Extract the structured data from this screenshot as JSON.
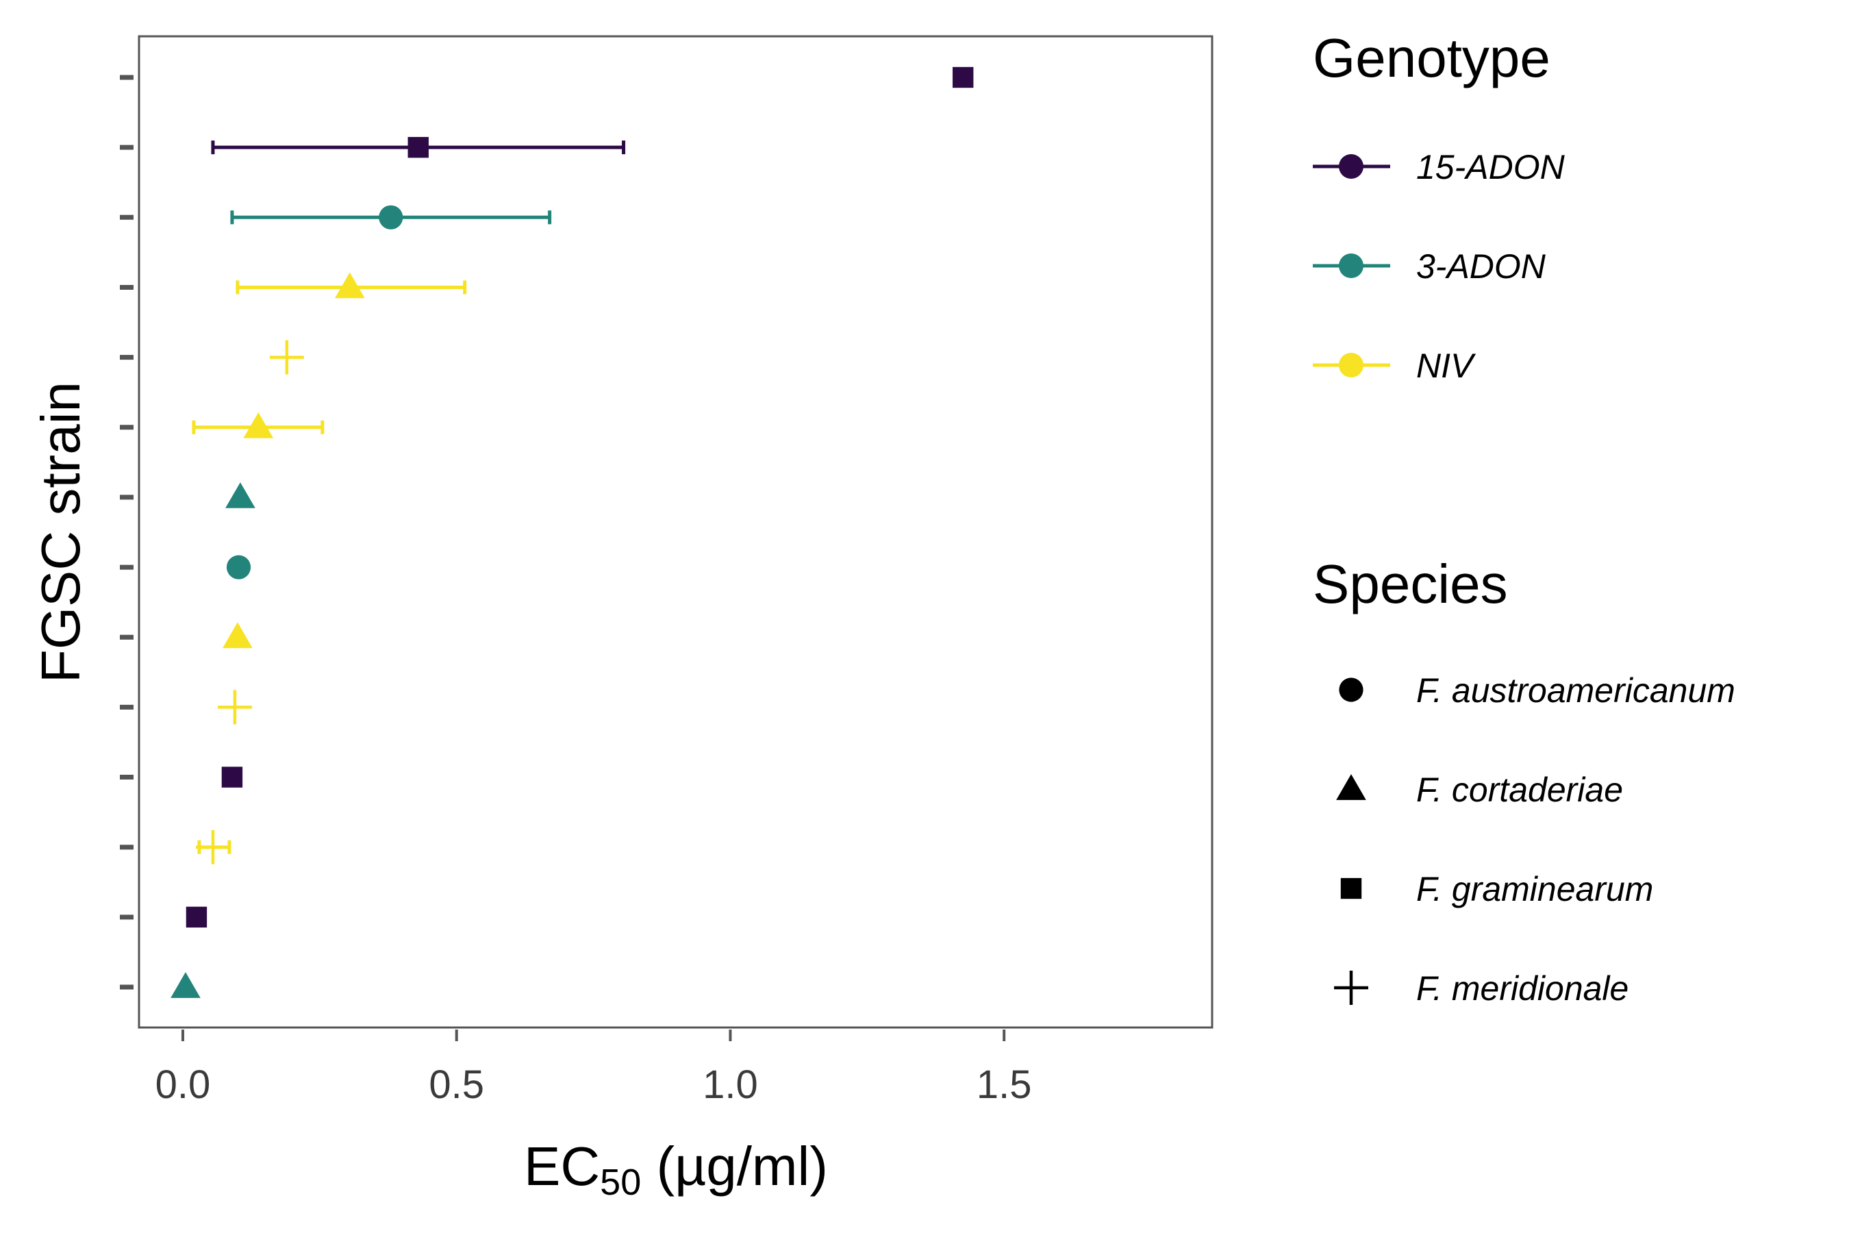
{
  "chart_data": {
    "type": "scatter",
    "xlabel_main": "EC",
    "xlabel_sub": "50",
    "xlabel_unit": " (µg/ml)",
    "ylabel": "FGSC strain",
    "xlim": [
      -0.08,
      1.88
    ],
    "x_ticks": [
      0.0,
      0.5,
      1.0,
      1.5
    ],
    "x_tick_labels": [
      "0.0",
      "0.5",
      "1.0",
      "1.5"
    ],
    "y_tick_count": 14,
    "y_tick_labels_visible": false,
    "grid": false,
    "legend_placement": "right",
    "genotype_colors": {
      "15-ADON": "#2d0a45",
      "3-ADON": "#22847a",
      "NIV": "#f7e223"
    },
    "points": [
      {
        "row": 1,
        "x": 0.005,
        "err": null,
        "genotype": "3-ADON",
        "species": "F. cortaderiae"
      },
      {
        "row": 2,
        "x": 0.025,
        "err": null,
        "genotype": "15-ADON",
        "species": "F. graminearum"
      },
      {
        "row": 3,
        "x": 0.055,
        "err": [
          0.03,
          0.085
        ],
        "genotype": "NIV",
        "species": "F. meridionale"
      },
      {
        "row": 4,
        "x": 0.09,
        "err": null,
        "genotype": "15-ADON",
        "species": "F. graminearum"
      },
      {
        "row": 5,
        "x": 0.095,
        "err": null,
        "genotype": "NIV",
        "species": "F. meridionale"
      },
      {
        "row": 6,
        "x": 0.1,
        "err": null,
        "genotype": "NIV",
        "species": "F. cortaderiae"
      },
      {
        "row": 7,
        "x": 0.102,
        "err": null,
        "genotype": "3-ADON",
        "species": "F. austroamericanum"
      },
      {
        "row": 8,
        "x": 0.105,
        "err": null,
        "genotype": "3-ADON",
        "species": "F. cortaderiae"
      },
      {
        "row": 9,
        "x": 0.138,
        "err": [
          0.02,
          0.255
        ],
        "genotype": "NIV",
        "species": "F. cortaderiae"
      },
      {
        "row": 10,
        "x": 0.19,
        "err": null,
        "genotype": "NIV",
        "species": "F. meridionale"
      },
      {
        "row": 11,
        "x": 0.305,
        "err": [
          0.1,
          0.515
        ],
        "genotype": "NIV",
        "species": "F. cortaderiae"
      },
      {
        "row": 12,
        "x": 0.38,
        "err": [
          0.09,
          0.67
        ],
        "genotype": "3-ADON",
        "species": "F. austroamericanum"
      },
      {
        "row": 13,
        "x": 0.43,
        "err": [
          0.055,
          0.805
        ],
        "genotype": "15-ADON",
        "species": "F. graminearum"
      },
      {
        "row": 14,
        "x": 1.425,
        "err": null,
        "genotype": "15-ADON",
        "species": "F. graminearum"
      }
    ],
    "legend": {
      "genotype_title": "Genotype",
      "genotype_items": [
        {
          "label": "15-ADON",
          "color": "#2d0a45"
        },
        {
          "label": "3-ADON",
          "color": "#22847a"
        },
        {
          "label": "NIV",
          "color": "#f7e223"
        }
      ],
      "species_title": "Species",
      "species_items": [
        {
          "label": "F. austroamericanum",
          "shape": "circle"
        },
        {
          "label": "F. cortaderiae",
          "shape": "triangle"
        },
        {
          "label": "F. graminearum",
          "shape": "square"
        },
        {
          "label": "F. meridionale",
          "shape": "plus"
        }
      ]
    }
  }
}
